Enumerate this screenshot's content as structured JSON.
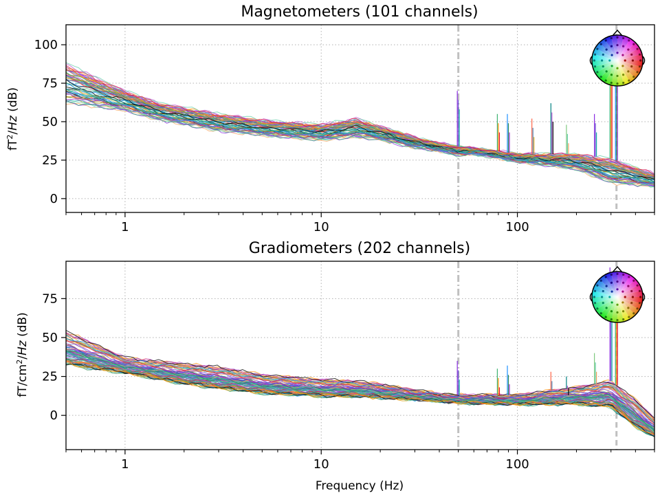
{
  "chart_data": [
    {
      "type": "line",
      "title": "Magnetometers (101 channels)",
      "ylabel": {
        "pre": "fT",
        "sup": "2",
        "post": "/",
        "ital": "Hz",
        "unit": " (dB)"
      },
      "xlabel": "",
      "xscale": "log",
      "xlim": [
        0.5,
        500
      ],
      "ylim": [
        -9,
        113
      ],
      "xticks": [
        1,
        10,
        100
      ],
      "xtick_labels": [
        "1",
        "10",
        "100"
      ],
      "yticks": [
        0,
        25,
        50,
        75,
        100
      ],
      "ytick_labels": [
        "0",
        "25",
        "50",
        "75",
        "100"
      ],
      "grid": true,
      "vlines": [
        {
          "x": 50,
          "style": "dashdot",
          "color": "#c0c0c0"
        },
        {
          "x": 320,
          "style": "dashed",
          "color": "#c0c0c0"
        }
      ],
      "series_count": 101,
      "envelope": {
        "x": [
          0.5,
          1,
          1.5,
          3,
          5,
          10,
          15,
          20,
          30,
          40,
          50,
          60,
          100,
          200,
          300,
          500
        ],
        "low": [
          62,
          57,
          51,
          44,
          41,
          38,
          40,
          38,
          33,
          31,
          28,
          29,
          24,
          19,
          10,
          8
        ],
        "high": [
          88,
          70,
          62,
          55,
          51,
          48,
          52,
          47,
          40,
          36,
          34,
          33,
          29,
          29,
          26,
          16
        ]
      },
      "peaks": [
        {
          "x": 50,
          "height": 70
        },
        {
          "x": 80,
          "height": 55
        },
        {
          "x": 90,
          "height": 55
        },
        {
          "x": 120,
          "height": 52
        },
        {
          "x": 150,
          "height": 62
        },
        {
          "x": 180,
          "height": 48
        },
        {
          "x": 250,
          "height": 55
        },
        {
          "x": 300,
          "height": 105
        },
        {
          "x": 320,
          "height": 102
        }
      ]
    },
    {
      "type": "line",
      "title": "Gradiometers (202 channels)",
      "ylabel": {
        "pre": "fT/cm",
        "sup": "2",
        "post": "/",
        "ital": "Hz",
        "unit": " (dB)"
      },
      "xlabel": "Frequency (Hz)",
      "xscale": "log",
      "xlim": [
        0.5,
        500
      ],
      "ylim": [
        -22,
        99
      ],
      "xticks": [
        1,
        10,
        100
      ],
      "xtick_labels": [
        "1",
        "10",
        "100"
      ],
      "yticks": [
        0,
        25,
        50,
        75
      ],
      "ytick_labels": [
        "0",
        "25",
        "50",
        "75"
      ],
      "grid": true,
      "vlines": [
        {
          "x": 50,
          "style": "dashdot",
          "color": "#c0c0c0"
        },
        {
          "x": 320,
          "style": "dashed",
          "color": "#c0c0c0"
        }
      ],
      "series_count": 202,
      "envelope": {
        "x": [
          0.5,
          1,
          2,
          3,
          5,
          10,
          15,
          20,
          30,
          40,
          50,
          100,
          200,
          300,
          400,
          500
        ],
        "low": [
          32,
          27,
          20,
          17,
          14,
          12,
          12,
          11,
          10,
          9,
          8,
          7,
          7,
          5,
          -8,
          -14
        ],
        "high": [
          54,
          37,
          33,
          31,
          26,
          23,
          22,
          20,
          16,
          14,
          13,
          13,
          18,
          22,
          10,
          -2
        ]
      },
      "peaks": [
        {
          "x": 50,
          "height": 35
        },
        {
          "x": 80,
          "height": 30
        },
        {
          "x": 90,
          "height": 32
        },
        {
          "x": 150,
          "height": 28
        },
        {
          "x": 180,
          "height": 25
        },
        {
          "x": 250,
          "height": 40
        },
        {
          "x": 300,
          "height": 95
        },
        {
          "x": 320,
          "height": 92
        }
      ]
    }
  ],
  "colors": {
    "axis": "#000000",
    "grid": "#b0b0b0",
    "vline": "#c0c0c0",
    "background": "#ffffff"
  },
  "icons": {
    "sensor_map": "head-topomap-icon"
  }
}
